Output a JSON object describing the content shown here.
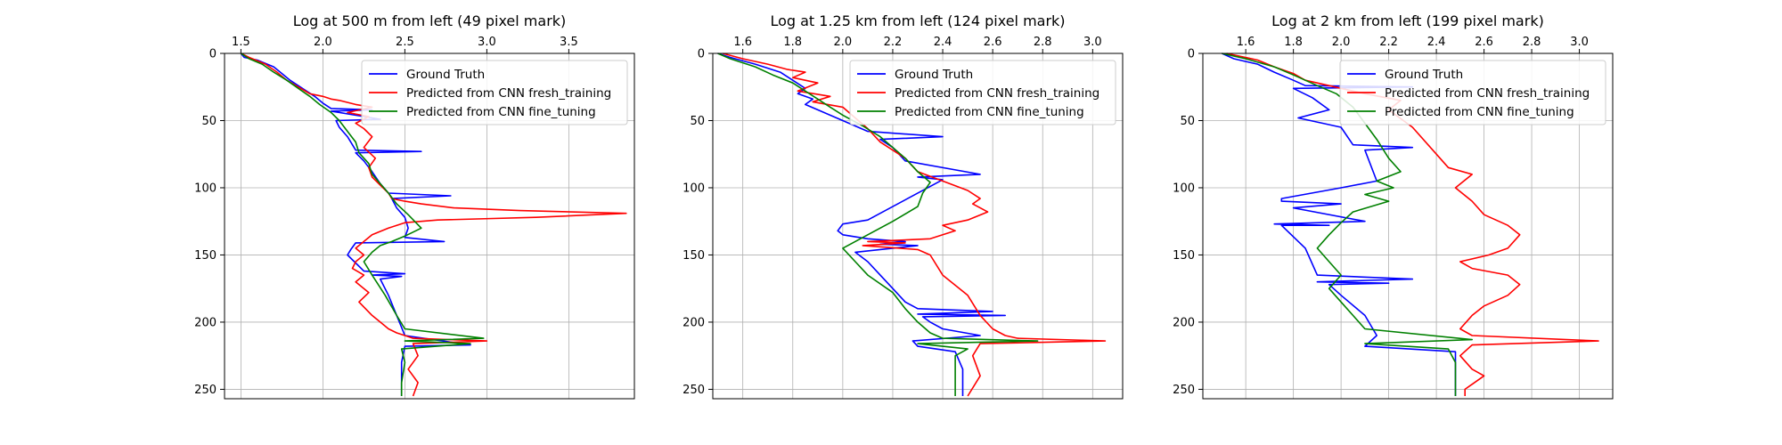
{
  "figure": {
    "background": "#ffffff",
    "grid": true,
    "legend_position": "upper-right"
  },
  "chart_data": [
    {
      "type": "line",
      "title": "Log at 500 m from left (49 pixel mark)",
      "x_axis_position": "top",
      "xlim": [
        1.4,
        3.9
      ],
      "ylim": [
        257,
        0
      ],
      "xticks": [
        1.5,
        2.0,
        2.5,
        3.0,
        3.5
      ],
      "xtick_labels": [
        "1.5",
        "2.0",
        "2.5",
        "3.0",
        "3.5"
      ],
      "yticks": [
        0,
        50,
        100,
        150,
        200,
        250
      ],
      "ytick_labels": [
        "0",
        "50",
        "100",
        "150",
        "200",
        "250"
      ],
      "series": [
        {
          "name": "Ground Truth",
          "color": "#0000ff",
          "x": [
            1.5,
            1.52,
            1.6,
            1.7,
            1.75,
            1.8,
            1.9,
            1.95,
            2.0,
            2.05,
            2.3,
            2.05,
            2.35,
            2.08,
            2.1,
            2.15,
            2.2,
            2.6,
            2.2,
            2.25,
            2.3,
            2.35,
            2.4,
            2.78,
            2.42,
            2.45,
            2.5,
            2.52,
            2.5,
            2.74,
            2.2,
            2.17,
            2.15,
            2.2,
            2.25,
            2.5,
            2.3,
            2.48,
            2.35,
            2.4,
            2.45,
            2.5,
            2.9,
            2.5,
            2.48,
            2.48
          ],
          "y": [
            0,
            3,
            5,
            10,
            15,
            20,
            28,
            32,
            37,
            41,
            42,
            43,
            49,
            50,
            55,
            62,
            72,
            73,
            74,
            80,
            88,
            97,
            104,
            106,
            108,
            115,
            122,
            130,
            137,
            140,
            141,
            146,
            150,
            156,
            162,
            164,
            165,
            166,
            168,
            180,
            195,
            210,
            217,
            218,
            230,
            255
          ]
        },
        {
          "name": "Predicted from CNN fresh_training",
          "color": "#ff0000",
          "x": [
            1.5,
            1.55,
            1.65,
            1.72,
            1.78,
            1.85,
            1.92,
            2.0,
            2.05,
            2.1,
            2.2,
            2.3,
            2.15,
            2.28,
            2.2,
            2.25,
            2.3,
            2.25,
            2.32,
            2.28,
            2.3,
            2.35,
            2.4,
            2.42,
            2.5,
            2.6,
            2.8,
            3.2,
            3.85,
            3.3,
            2.7,
            2.5,
            2.4,
            2.3,
            2.2,
            2.25,
            2.2,
            2.18,
            2.25,
            2.2,
            2.28,
            2.22,
            2.3,
            2.35,
            2.4,
            2.45,
            2.5,
            2.55,
            3.0,
            2.55,
            2.58,
            2.52,
            2.58,
            2.55
          ],
          "y": [
            0,
            3,
            8,
            14,
            20,
            25,
            30,
            32,
            34,
            35,
            38,
            40,
            44,
            47,
            52,
            56,
            62,
            70,
            78,
            85,
            92,
            98,
            104,
            108,
            110,
            112,
            115,
            117,
            119,
            122,
            124,
            126,
            130,
            135,
            145,
            150,
            155,
            160,
            165,
            170,
            178,
            185,
            195,
            200,
            205,
            208,
            210,
            212,
            214,
            216,
            225,
            235,
            245,
            255
          ]
        },
        {
          "name": "Predicted from CNN fine_tuning",
          "color": "#008000",
          "x": [
            1.5,
            1.55,
            1.63,
            1.7,
            1.78,
            1.85,
            1.92,
            1.98,
            2.05,
            2.1,
            2.15,
            2.2,
            2.22,
            2.28,
            2.3,
            2.35,
            2.4,
            2.45,
            2.52,
            2.6,
            2.5,
            2.42,
            2.35,
            2.3,
            2.25,
            2.3,
            2.38,
            2.45,
            2.5,
            2.98,
            2.5,
            2.9,
            2.48,
            2.5,
            2.48,
            2.48
          ],
          "y": [
            0,
            4,
            8,
            14,
            20,
            26,
            32,
            38,
            44,
            50,
            58,
            66,
            74,
            82,
            90,
            97,
            104,
            112,
            120,
            130,
            136,
            140,
            143,
            148,
            155,
            165,
            180,
            195,
            205,
            212,
            214,
            216,
            220,
            230,
            245,
            255
          ]
        }
      ]
    },
    {
      "type": "line",
      "title": "Log at 1.25 km from left (124 pixel mark)",
      "x_axis_position": "top",
      "xlim": [
        1.48,
        3.12
      ],
      "ylim": [
        257,
        0
      ],
      "xticks": [
        1.6,
        1.8,
        2.0,
        2.2,
        2.4,
        2.6,
        2.8,
        3.0
      ],
      "xtick_labels": [
        "1.6",
        "1.8",
        "2.0",
        "2.2",
        "2.4",
        "2.6",
        "2.8",
        "3.0"
      ],
      "yticks": [
        0,
        50,
        100,
        150,
        200,
        250
      ],
      "ytick_labels": [
        "0",
        "50",
        "100",
        "150",
        "200",
        "250"
      ],
      "series": [
        {
          "name": "Ground Truth",
          "color": "#0000ff",
          "x": [
            1.5,
            1.55,
            1.65,
            1.75,
            1.8,
            1.85,
            1.82,
            1.88,
            1.85,
            1.9,
            2.0,
            2.1,
            2.4,
            2.15,
            2.2,
            2.25,
            2.55,
            2.3,
            2.4,
            2.1,
            2.0,
            1.98,
            2.0,
            2.1,
            2.25,
            2.15,
            2.3,
            2.05,
            2.1,
            2.15,
            2.2,
            2.25,
            2.3,
            2.6,
            2.3,
            2.65,
            2.32,
            2.35,
            2.4,
            2.55,
            2.28,
            2.3,
            2.45,
            2.48,
            2.48
          ],
          "y": [
            0,
            3,
            8,
            14,
            20,
            26,
            30,
            34,
            38,
            42,
            50,
            58,
            62,
            64,
            70,
            80,
            90,
            92,
            94,
            124,
            127,
            132,
            135,
            138,
            140,
            142,
            143,
            148,
            155,
            165,
            175,
            185,
            190,
            192,
            194,
            195,
            196,
            200,
            205,
            210,
            214,
            218,
            222,
            235,
            255
          ]
        },
        {
          "name": "Predicted from CNN fresh_training",
          "color": "#ff0000",
          "x": [
            1.52,
            1.6,
            1.7,
            1.78,
            1.85,
            1.8,
            1.9,
            1.82,
            1.95,
            1.88,
            2.0,
            2.05,
            2.1,
            2.15,
            2.25,
            2.3,
            2.4,
            2.5,
            2.55,
            2.52,
            2.58,
            2.5,
            2.4,
            2.45,
            2.35,
            2.1,
            2.25,
            2.08,
            2.3,
            2.35,
            2.4,
            2.5,
            2.55,
            2.6,
            2.65,
            2.7,
            3.05,
            2.55,
            2.52,
            2.55,
            2.5
          ],
          "y": [
            0,
            4,
            8,
            12,
            14,
            18,
            22,
            28,
            32,
            36,
            40,
            48,
            56,
            66,
            78,
            88,
            95,
            102,
            108,
            112,
            118,
            124,
            128,
            132,
            138,
            140,
            141,
            143,
            146,
            150,
            165,
            180,
            195,
            205,
            210,
            212,
            214,
            216,
            225,
            240,
            255
          ]
        },
        {
          "name": "Predicted from CNN fine_tuning",
          "color": "#008000",
          "x": [
            1.5,
            1.55,
            1.65,
            1.72,
            1.8,
            1.85,
            1.9,
            1.95,
            2.0,
            2.08,
            2.15,
            2.2,
            2.25,
            2.3,
            2.35,
            2.32,
            2.3,
            2.2,
            2.1,
            2.0,
            2.05,
            2.1,
            2.2,
            2.25,
            2.3,
            2.35,
            2.4,
            2.78,
            2.3,
            2.5,
            2.45,
            2.45,
            2.45
          ],
          "y": [
            0,
            4,
            10,
            16,
            22,
            28,
            34,
            40,
            46,
            54,
            62,
            70,
            78,
            88,
            96,
            104,
            114,
            125,
            135,
            145,
            155,
            165,
            178,
            190,
            200,
            208,
            212,
            214,
            216,
            220,
            225,
            240,
            255
          ]
        }
      ]
    },
    {
      "type": "line",
      "title": "Log at 2 km from left (199 pixel mark)",
      "x_axis_position": "top",
      "xlim": [
        1.42,
        3.14
      ],
      "ylim": [
        257,
        0
      ],
      "xticks": [
        1.6,
        1.8,
        2.0,
        2.2,
        2.4,
        2.6,
        2.8,
        3.0
      ],
      "xtick_labels": [
        "1.6",
        "1.8",
        "2.0",
        "2.2",
        "2.4",
        "2.6",
        "2.8",
        "3.0"
      ],
      "yticks": [
        0,
        50,
        100,
        150,
        200,
        250
      ],
      "ytick_labels": [
        "0",
        "50",
        "100",
        "150",
        "200",
        "250"
      ],
      "series": [
        {
          "name": "Ground Truth",
          "color": "#0000ff",
          "x": [
            1.5,
            1.55,
            1.65,
            1.72,
            1.8,
            1.85,
            2.3,
            1.8,
            1.88,
            1.95,
            1.82,
            2.0,
            2.05,
            2.3,
            2.1,
            2.15,
            2.0,
            1.75,
            1.75,
            2.0,
            1.8,
            2.1,
            1.72,
            1.95,
            1.75,
            1.85,
            1.9,
            2.3,
            1.9,
            2.2,
            1.95,
            2.0,
            2.1,
            2.15,
            2.1,
            2.48,
            2.48
          ],
          "y": [
            0,
            4,
            8,
            14,
            20,
            24,
            25,
            26,
            33,
            42,
            48,
            55,
            68,
            70,
            72,
            95,
            100,
            108,
            110,
            112,
            115,
            125,
            127,
            128,
            128,
            145,
            165,
            168,
            170,
            171,
            172,
            180,
            195,
            210,
            218,
            222,
            255
          ]
        },
        {
          "name": "Predicted from CNN fresh_training",
          "color": "#ff0000",
          "x": [
            1.52,
            1.65,
            1.72,
            1.8,
            1.85,
            1.95,
            2.0,
            2.1,
            2.25,
            2.2,
            2.3,
            2.4,
            2.45,
            2.55,
            2.48,
            2.55,
            2.6,
            2.7,
            2.75,
            2.7,
            2.62,
            2.5,
            2.55,
            2.7,
            2.75,
            2.7,
            2.6,
            2.55,
            2.5,
            2.55,
            3.08,
            2.55,
            2.5,
            2.55,
            2.6,
            2.52,
            2.52
          ],
          "y": [
            0,
            5,
            10,
            15,
            20,
            24,
            26,
            30,
            35,
            42,
            55,
            75,
            85,
            90,
            100,
            110,
            120,
            128,
            135,
            145,
            150,
            155,
            160,
            165,
            172,
            180,
            188,
            195,
            205,
            210,
            214,
            217,
            225,
            235,
            240,
            250,
            255
          ]
        },
        {
          "name": "Predicted from CNN fine_tuning",
          "color": "#008000",
          "x": [
            1.5,
            1.6,
            1.72,
            1.8,
            1.85,
            1.9,
            1.98,
            2.05,
            2.1,
            2.15,
            2.2,
            2.25,
            2.15,
            2.22,
            2.1,
            2.2,
            2.05,
            2.0,
            1.95,
            1.9,
            1.95,
            2.0,
            1.95,
            2.0,
            2.05,
            2.1,
            2.55,
            2.1,
            2.45,
            2.48,
            2.48
          ],
          "y": [
            0,
            4,
            10,
            16,
            20,
            24,
            30,
            40,
            52,
            64,
            78,
            88,
            95,
            100,
            105,
            110,
            118,
            126,
            135,
            145,
            155,
            165,
            175,
            185,
            195,
            205,
            213,
            216,
            220,
            230,
            255
          ]
        }
      ]
    }
  ]
}
